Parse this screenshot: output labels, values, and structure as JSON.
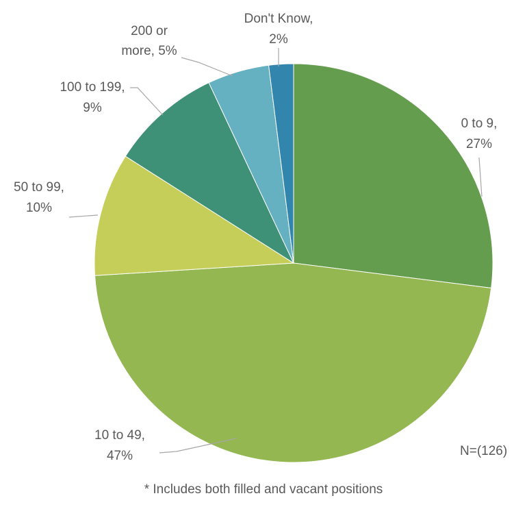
{
  "chart_data": {
    "type": "pie",
    "title": "",
    "note": "N=(126)",
    "footnote": "* Includes both filled and vacant positions",
    "start_angle_deg": 0,
    "direction": "clockwise",
    "slices": [
      {
        "line1": "0 to 9,",
        "line2": "27%",
        "value": 27,
        "color": "#659D4E"
      },
      {
        "line1": "10  to 49,",
        "line2": "47%",
        "value": 47,
        "color": "#94B751"
      },
      {
        "line1": "50 to 99,",
        "line2": "10%",
        "value": 10,
        "color": "#C4CE58"
      },
      {
        "line1": "100  to 199,",
        "line2": "9%",
        "value": 9,
        "color": "#3E9176"
      },
      {
        "line1": "200 or",
        "line2": "more, 5%",
        "value": 5,
        "color": "#65B1C1"
      },
      {
        "line1": "Don't Know,",
        "line2": "2%",
        "value": 2,
        "color": "#3286AE"
      }
    ]
  }
}
